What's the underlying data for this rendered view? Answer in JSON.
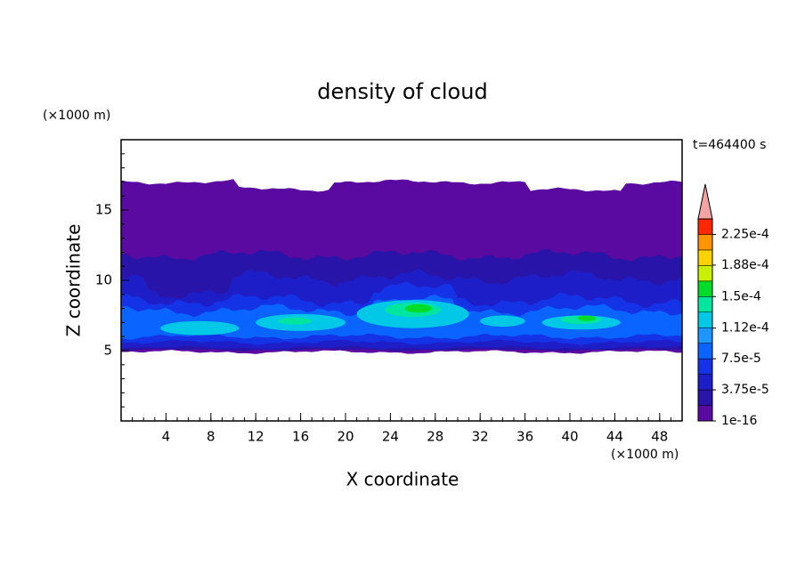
{
  "chart_data": {
    "type": "contour",
    "title": "density of cloud",
    "xlabel": "X coordinate",
    "ylabel": "Z coordinate",
    "x_unit": "(×1000 m)",
    "y_unit": "(×1000 m)",
    "annotation": "t=464400 s",
    "xlim": [
      0,
      50
    ],
    "ylim": [
      0,
      20
    ],
    "xticks": [
      4,
      8,
      12,
      16,
      20,
      24,
      28,
      32,
      36,
      40,
      44,
      48
    ],
    "yticks": [
      5,
      10,
      15
    ],
    "colorbar": {
      "clim": [
        1e-16,
        0.00024375
      ],
      "ticks": [
        {
          "value": 1e-16,
          "label": "1e-16"
        },
        {
          "value": 3.75e-05,
          "label": "3.75e-5"
        },
        {
          "value": 7.5e-05,
          "label": "7.5e-5"
        },
        {
          "value": 0.000112,
          "label": "1.12e-4"
        },
        {
          "value": 0.00015,
          "label": "1.5e-4"
        },
        {
          "value": 0.000188,
          "label": "1.88e-4"
        },
        {
          "value": 0.000225,
          "label": "2.25e-4"
        }
      ],
      "colors": [
        "#5a0aa0",
        "#2814a8",
        "#1e1ec8",
        "#1432e6",
        "#0a64ff",
        "#1e96ff",
        "#00c8e6",
        "#00e6a0",
        "#00dc28",
        "#c8f000",
        "#ffd200",
        "#ff9600",
        "#ff2800"
      ],
      "extend_color": "#f4a4a4"
    }
  }
}
